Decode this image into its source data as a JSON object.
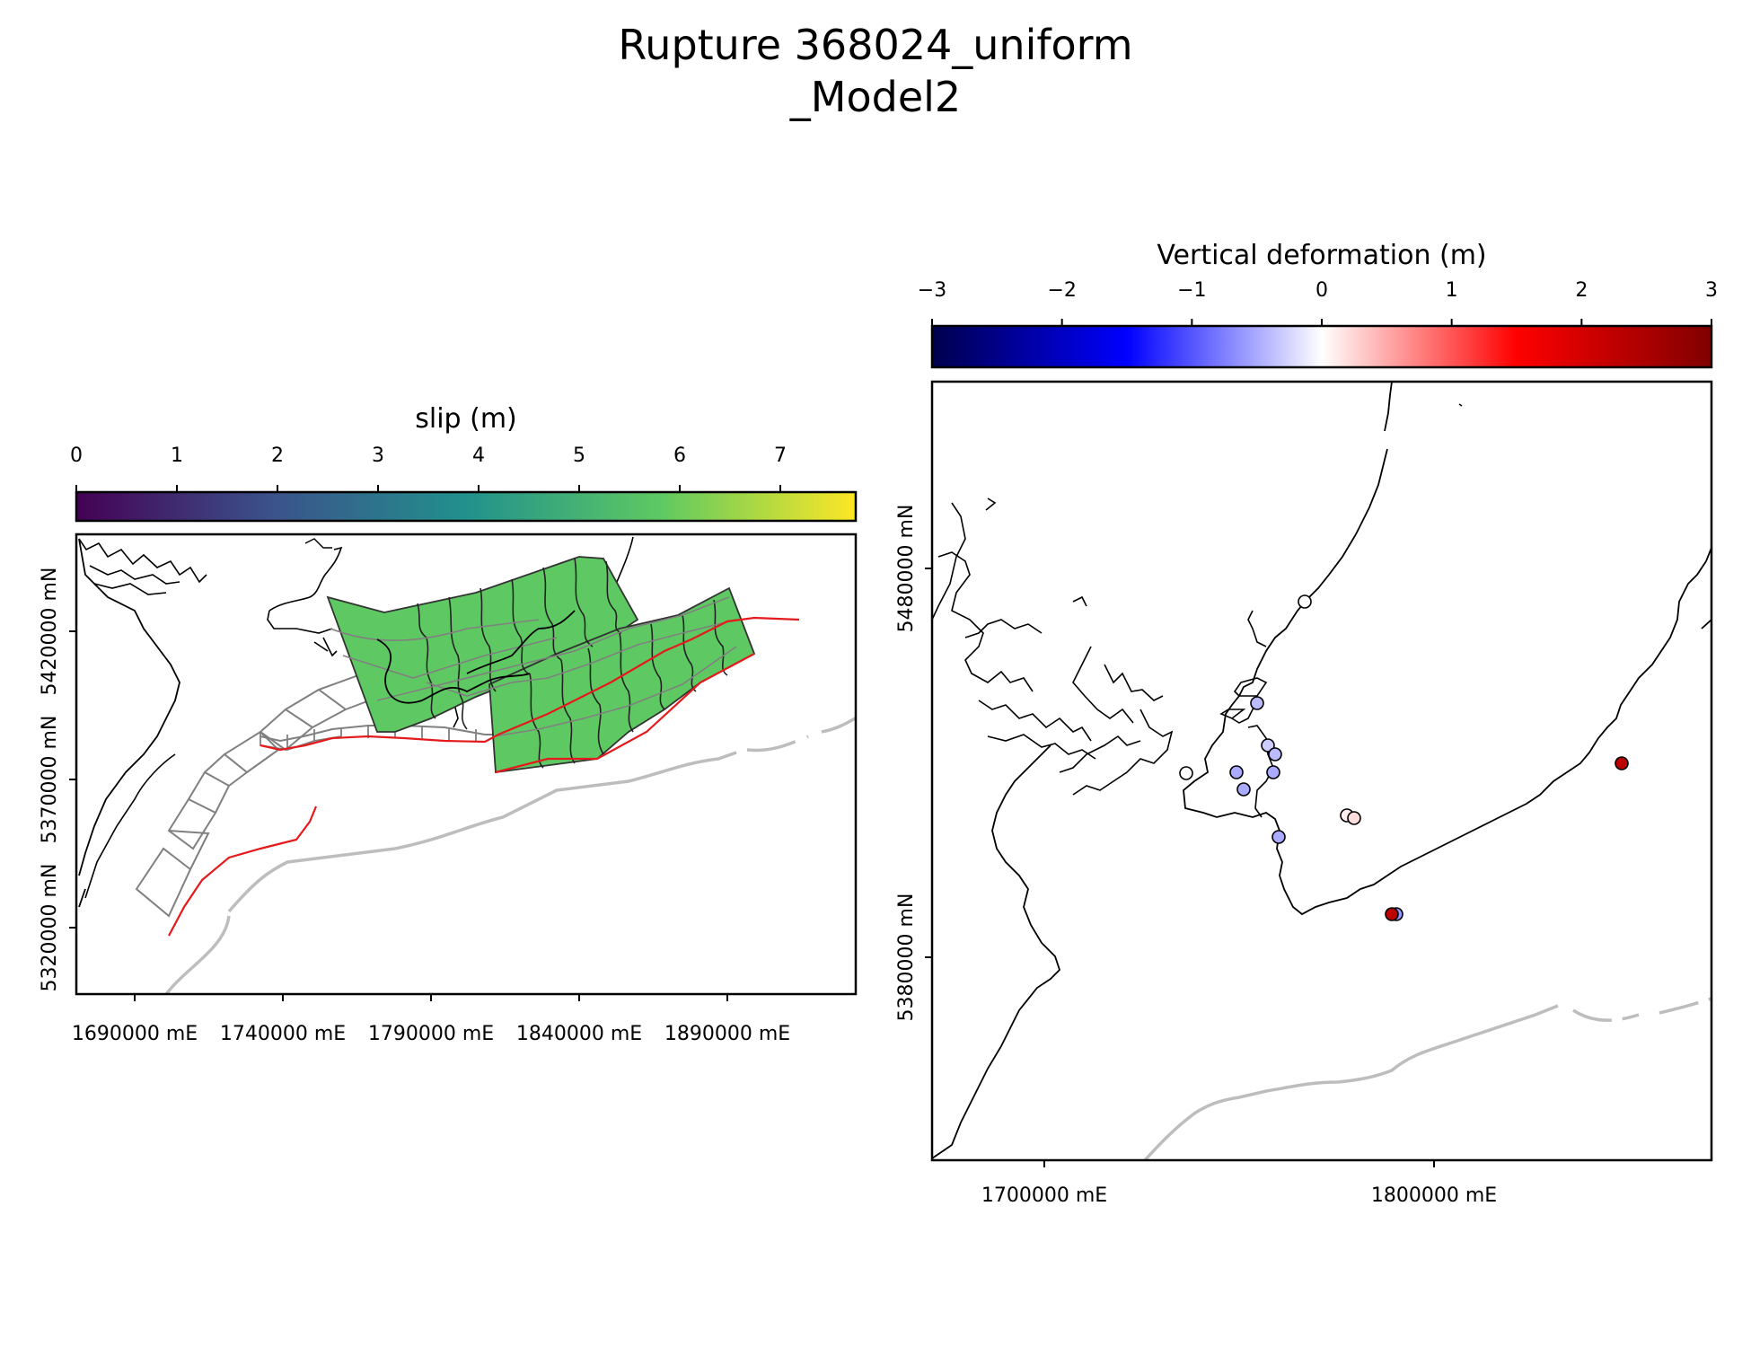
{
  "title_line1": "Rupture 368024_uniform",
  "title_line2": "_Model2",
  "left_panel": {
    "colorbar_label": "slip (m)",
    "colorbar_ticks": [
      "0",
      "1",
      "2",
      "3",
      "4",
      "5",
      "6",
      "7"
    ],
    "colorbar_range": [
      0,
      7.75
    ],
    "colormap": [
      "#440154",
      "#3b528b",
      "#21918c",
      "#5ec962",
      "#fde725"
    ],
    "x_ticks": [
      "1690000 mE",
      "1740000 mE",
      "1790000 mE",
      "1840000 mE",
      "1890000 mE"
    ],
    "y_ticks": [
      "5420000 mN",
      "5370000 mN",
      "5320000 mN"
    ],
    "rupture_slip_m": 6.0,
    "slip_fill_color": "#5ec962",
    "fault_trace_color": "#e41a1c",
    "subduction_color": "#bdbdbd"
  },
  "right_panel": {
    "colorbar_label": "Vertical deformation (m)",
    "colorbar_ticks": [
      "−3",
      "−2",
      "−1",
      "0",
      "1",
      "2",
      "3"
    ],
    "colorbar_range": [
      -3,
      3
    ],
    "colormap": [
      "#00004d",
      "#0000ff",
      "#ffffff",
      "#ff0000",
      "#800000"
    ],
    "x_ticks": [
      "1700000 mE",
      "1800000 mE"
    ],
    "y_ticks": [
      "5480000 mN",
      "5380000 mN"
    ],
    "sites": [
      {
        "deformation_m": 0.0
      },
      {
        "deformation_m": -0.4
      },
      {
        "deformation_m": -0.3
      },
      {
        "deformation_m": -0.4
      },
      {
        "deformation_m": -0.5
      },
      {
        "deformation_m": 0.0
      },
      {
        "deformation_m": -0.5
      },
      {
        "deformation_m": -0.5
      },
      {
        "deformation_m": -0.5
      },
      {
        "deformation_m": 0.1
      },
      {
        "deformation_m": 0.2
      },
      {
        "deformation_m": -0.6
      },
      {
        "deformation_m": 2.3
      },
      {
        "deformation_m": 2.3
      }
    ]
  }
}
